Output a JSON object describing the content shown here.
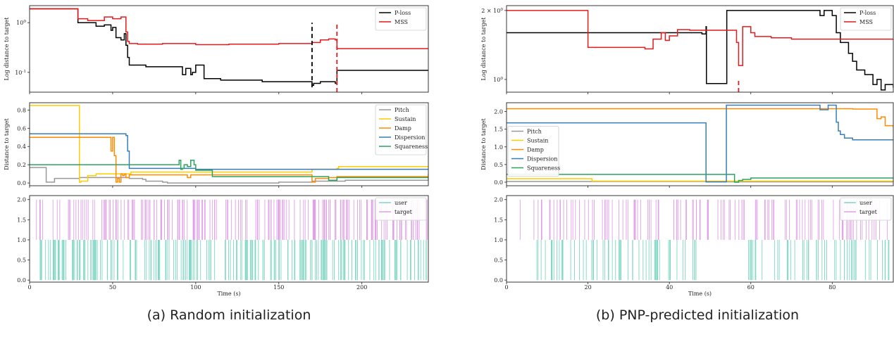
{
  "figure": {
    "caption_a": "(a) Random initialization",
    "caption_b": "(b) PNP-predicted initialization"
  },
  "chart_data": [
    {
      "id": "a",
      "type": "line",
      "xlabel": "Time (s)",
      "xlim": [
        0,
        240
      ],
      "xticks": [
        0,
        50,
        100,
        150,
        200
      ],
      "panels": [
        {
          "ylabel": "Log distance to target",
          "yscale": "log",
          "ylim": [
            0.04,
            2.2
          ],
          "yticks": [
            {
              "v": 1,
              "label": "10^0"
            },
            {
              "v": 0.1,
              "label": "10^-1"
            }
          ],
          "legend": "top-right",
          "vlines": [
            {
              "x": 170,
              "color": "#000000",
              "from": 0.05,
              "to": 1.0
            },
            {
              "x": 185,
              "color": "#e41a1c",
              "from": 0.04,
              "to": 1.0
            }
          ],
          "series": [
            {
              "name": "P-loss",
              "color": "#000000",
              "step": true,
              "x": [
                0,
                29,
                29.1,
                40,
                45,
                49,
                50,
                52,
                55,
                57,
                58,
                59,
                60,
                70,
                90,
                92,
                94,
                97,
                98,
                100,
                105,
                115,
                140,
                170,
                171,
                175,
                184,
                185,
                240
              ],
              "y": [
                1.9,
                1.9,
                1.0,
                0.85,
                0.9,
                0.7,
                0.8,
                0.5,
                0.45,
                0.6,
                0.35,
                0.2,
                0.14,
                0.13,
                0.13,
                0.09,
                0.12,
                0.09,
                0.1,
                0.14,
                0.075,
                0.07,
                0.065,
                0.055,
                0.06,
                0.065,
                0.06,
                0.11,
                0.11
              ]
            },
            {
              "name": "MSS",
              "color": "#e41a1c",
              "step": true,
              "x": [
                0,
                29,
                29.1,
                35,
                45,
                50,
                55,
                58,
                59,
                60,
                65,
                80,
                100,
                120,
                150,
                170,
                175,
                180,
                184,
                185,
                240
              ],
              "y": [
                1.9,
                1.9,
                1.2,
                1.1,
                1.3,
                1.2,
                1.3,
                0.65,
                0.42,
                0.38,
                0.37,
                0.38,
                0.36,
                0.37,
                0.38,
                0.4,
                0.45,
                0.47,
                0.45,
                0.3,
                0.3
              ]
            }
          ]
        },
        {
          "ylabel": "Distance to target",
          "ylim": [
            -0.03,
            0.88
          ],
          "yticks": [
            0.0,
            0.2,
            0.4,
            0.6,
            0.8
          ],
          "legend": "top-right",
          "series": [
            {
              "name": "Pitch",
              "color": "#999999",
              "step": true,
              "x": [
                0,
                9,
                10,
                14,
                15,
                30,
                50,
                60,
                68,
                70,
                80,
                83,
                100,
                150,
                170,
                190,
                240
              ],
              "y": [
                0.17,
                0.17,
                0.01,
                0.01,
                0.05,
                0.06,
                0.06,
                0.05,
                0.04,
                0.02,
                0.01,
                0.0,
                0.0,
                0.01,
                0.02,
                0.03,
                0.05
              ]
            },
            {
              "name": "Sustain",
              "color": "#ffcc00",
              "step": true,
              "x": [
                0,
                29,
                30,
                31,
                35,
                40,
                50,
                60,
                61,
                90,
                100,
                140,
                170,
                185,
                186,
                240
              ],
              "y": [
                0.85,
                0.85,
                0.01,
                0.02,
                0.08,
                0.1,
                0.1,
                0.1,
                0.12,
                0.12,
                0.12,
                0.12,
                0.15,
                0.16,
                0.18,
                0.18
              ]
            },
            {
              "name": "Damp",
              "color": "#ff8c00",
              "step": true,
              "x": [
                0,
                48,
                49,
                50,
                51,
                52,
                53,
                54,
                55,
                56,
                57,
                58,
                60,
                90,
                95,
                97,
                100,
                150,
                170,
                172,
                180,
                185,
                240
              ],
              "y": [
                0.5,
                0.5,
                0.35,
                0.5,
                0.3,
                0.01,
                0.05,
                0.01,
                0.1,
                0.08,
                0.1,
                0.06,
                0.09,
                0.09,
                0.06,
                0.09,
                0.09,
                0.09,
                0.01,
                0.05,
                0.06,
                0.07,
                0.1
              ]
            },
            {
              "name": "Dispersion",
              "color": "#377eb8",
              "step": true,
              "x": [
                0,
                57,
                58,
                59,
                60,
                100,
                240
              ],
              "y": [
                0.54,
                0.54,
                0.52,
                0.35,
                0.16,
                0.15,
                0.15
              ]
            },
            {
              "name": "Squareness",
              "color": "#2ca25f",
              "step": true,
              "x": [
                0,
                88,
                90,
                91,
                92,
                93,
                95,
                97,
                99,
                100,
                110,
                150,
                170,
                180,
                185,
                240
              ],
              "y": [
                0.2,
                0.2,
                0.25,
                0.15,
                0.16,
                0.2,
                0.18,
                0.25,
                0.2,
                0.14,
                0.07,
                0.07,
                0.07,
                0.03,
                0.06,
                0.06
              ]
            }
          ]
        },
        {
          "ylim": [
            -0.05,
            2.1
          ],
          "yticks": [
            0.0,
            0.5,
            1.0,
            1.5,
            2.0
          ],
          "legend": "top-right",
          "series": [
            {
              "name": "user",
              "color": "#7fd6c3",
              "type": "events",
              "y0": 0,
              "y1": 1,
              "range": [
                5,
                240
              ],
              "count": 220
            },
            {
              "name": "target",
              "color": "#dda2e4",
              "type": "events",
              "y0": 1,
              "y1": 2,
              "range": [
                3,
                240
              ],
              "count": 200
            }
          ]
        }
      ]
    },
    {
      "id": "b",
      "type": "line",
      "xlabel": "Time (s)",
      "xlim": [
        0,
        95
      ],
      "xticks": [
        0,
        20,
        40,
        60,
        80
      ],
      "panels": [
        {
          "ylabel": "Log distance to target",
          "yscale": "log",
          "ylim": [
            0.88,
            2.1
          ],
          "yticks": [
            {
              "v": 2,
              "label": "2 × 10^0"
            },
            {
              "v": 1,
              "label": "10^0"
            }
          ],
          "legend": "top-right",
          "vlines": [
            {
              "x": 57,
              "color": "#e41a1c",
              "from": 0.88,
              "to": 1.0
            }
          ],
          "series": [
            {
              "name": "P-loss",
              "color": "#000000",
              "step": true,
              "x": [
                0,
                48,
                49,
                49.1,
                54,
                54.1,
                55,
                76,
                77,
                78,
                79,
                80,
                81,
                82,
                84,
                85,
                86,
                88,
                90,
                91,
                92,
                93,
                95
              ],
              "y": [
                1.6,
                1.58,
                1.7,
                0.96,
                0.96,
                2.0,
                2.0,
                2.0,
                1.9,
                2.0,
                2.0,
                1.9,
                1.6,
                1.45,
                1.3,
                1.2,
                1.1,
                1.05,
                0.95,
                1.0,
                0.9,
                0.95,
                0.92
              ]
            },
            {
              "name": "MSS",
              "color": "#e41a1c",
              "step": true,
              "x": [
                0,
                19.5,
                20,
                30,
                34,
                36,
                38,
                39,
                40,
                42,
                45,
                50,
                56.5,
                57,
                58,
                60,
                61,
                65,
                70,
                80,
                95
              ],
              "y": [
                2.0,
                2.0,
                1.38,
                1.38,
                1.36,
                1.5,
                1.6,
                1.48,
                1.55,
                1.65,
                1.64,
                1.64,
                1.45,
                1.15,
                1.7,
                1.6,
                1.54,
                1.52,
                1.5,
                1.5,
                1.5
              ]
            }
          ]
        },
        {
          "ylabel": "Distance to target",
          "ylim": [
            -0.1,
            2.25
          ],
          "yticks": [
            0.0,
            0.5,
            1.0,
            1.5,
            2.0
          ],
          "legend": "left",
          "series": [
            {
              "name": "Pitch",
              "color": "#999999",
              "step": true,
              "x": [
                0,
                48.5,
                49,
                95
              ],
              "y": [
                0.02,
                0.02,
                0.01,
                0.0
              ]
            },
            {
              "name": "Sustain",
              "color": "#ffcc00",
              "step": true,
              "x": [
                0,
                20,
                21,
                95
              ],
              "y": [
                0.1,
                0.1,
                0.03,
                0.03
              ]
            },
            {
              "name": "Damp",
              "color": "#ff8c00",
              "step": true,
              "x": [
                0,
                80,
                85,
                90,
                91,
                92,
                93,
                95
              ],
              "y": [
                2.08,
                2.08,
                2.07,
                2.07,
                1.8,
                1.85,
                1.6,
                1.55
              ]
            },
            {
              "name": "Dispersion",
              "color": "#377eb8",
              "step": true,
              "x": [
                0,
                48.5,
                49,
                53.5,
                54,
                76,
                77,
                79,
                80,
                81,
                81.5,
                82,
                83,
                85,
                95
              ],
              "y": [
                1.68,
                1.68,
                0.01,
                0.01,
                2.18,
                2.18,
                2.05,
                2.18,
                2.18,
                1.7,
                1.45,
                1.35,
                1.25,
                1.2,
                1.2
              ]
            },
            {
              "name": "Squareness",
              "color": "#2ca25f",
              "step": true,
              "x": [
                0,
                55,
                56,
                57,
                58,
                60,
                95
              ],
              "y": [
                0.22,
                0.22,
                0.0,
                0.05,
                0.08,
                0.12,
                0.12
              ]
            }
          ]
        },
        {
          "ylim": [
            -0.05,
            2.1
          ],
          "yticks": [
            0.0,
            0.5,
            1.0,
            1.5,
            2.0
          ],
          "legend": "top-right",
          "series": [
            {
              "name": "user",
              "color": "#7fd6c3",
              "type": "events",
              "y0": 0,
              "y1": 1,
              "segments": [
                [
                  7,
                  48
                ],
                [
                  59,
                  95
                ]
              ],
              "count": 110
            },
            {
              "name": "target",
              "color": "#dda2e4",
              "type": "events",
              "y0": 1,
              "y1": 2,
              "segments": [
                [
                  3,
                  59
                ],
                [
                  60,
                  95
                ]
              ],
              "count": 120
            }
          ]
        }
      ]
    }
  ]
}
